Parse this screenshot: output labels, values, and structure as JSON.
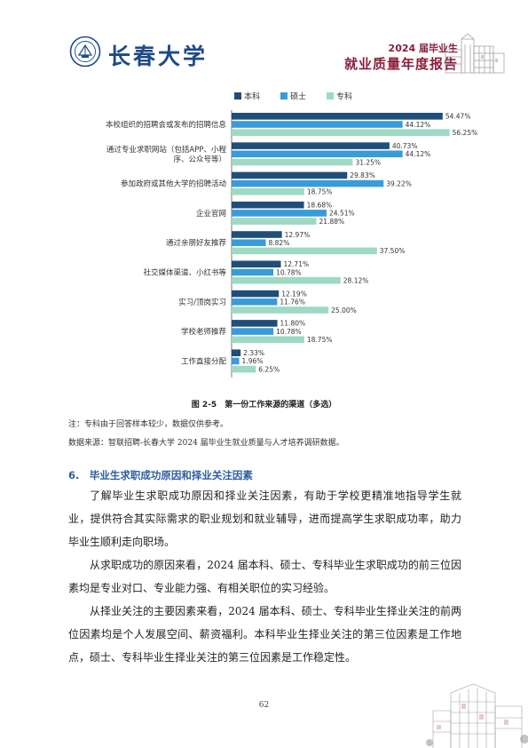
{
  "header": {
    "logo_text": "长春大学",
    "report_year": "2024 届毕业生",
    "report_title": "就业质量年度报告"
  },
  "chart_data": {
    "type": "bar",
    "orientation": "horizontal",
    "categories": [
      "本校组织的招聘会或发布的招聘信息",
      "通过专业求职网站（包括APP、小程序、公众号等）",
      "参加政府或其他大学的招聘活动",
      "企业官网",
      "通过亲朋好友推荐",
      "社交媒体渠道、小红书等",
      "实习/顶岗实习",
      "学校老师推荐",
      "工作直接分配"
    ],
    "category_lines": [
      [
        "本校组织的招聘会或发布的招聘信息"
      ],
      [
        "通过专业求职网站（包括APP、小程",
        "序、公众号等）"
      ],
      [
        "参加政府或其他大学的招聘活动"
      ],
      [
        "企业官网"
      ],
      [
        "通过亲朋好友推荐"
      ],
      [
        "社交媒体渠道、小红书等"
      ],
      [
        "实习/顶岗实习"
      ],
      [
        "学校老师推荐"
      ],
      [
        "工作直接分配"
      ]
    ],
    "series": [
      {
        "name": "本科",
        "color": "#1f4e79",
        "values": [
          54.47,
          40.73,
          29.83,
          18.68,
          12.97,
          12.71,
          12.19,
          11.8,
          2.33
        ],
        "labels": [
          "54.47%",
          "40.73%",
          "29.83%",
          "18.68%",
          "12.97%",
          "12.71%",
          "12.19%",
          "11.80%",
          "2.33%"
        ]
      },
      {
        "name": "硕士",
        "color": "#3a9bd9",
        "values": [
          44.12,
          44.12,
          39.22,
          24.51,
          8.82,
          10.78,
          11.76,
          10.78,
          1.96
        ],
        "labels": [
          "44.12%",
          "44.12%",
          "39.22%",
          "24.51%",
          "8.82%",
          "10.78%",
          "11.76%",
          "10.78%",
          "1.96%"
        ]
      },
      {
        "name": "专科",
        "color": "#9ed9c3",
        "values": [
          56.25,
          31.25,
          18.75,
          21.88,
          37.5,
          28.12,
          25.0,
          18.75,
          6.25
        ],
        "labels": [
          "56.25%",
          "31.25%",
          "18.75%",
          "21.88%",
          "37.50%",
          "28.12%",
          "25.00%",
          "18.75%",
          "6.25%"
        ]
      }
    ],
    "xlim": [
      0,
      60
    ],
    "legend_position": "top",
    "grid": false
  },
  "caption": "图 2-5　第一份工作来源的渠道（多选）",
  "note1": "注：专科由于回答样本较少，数据仅供参考。",
  "note2": "数据来源：智联招聘-长春大学 2024 届毕业生就业质量与人才培养调研数据。",
  "section_title": "6.　毕业生求职成功原因和择业关注因素",
  "paragraphs": [
    "了解毕业生求职成功原因和择业关注因素，有助于学校更精准地指导学生就业，提供符合其实际需求的职业规划和就业辅导，进而提高学生求职成功率，助力毕业生顺利走向职场。",
    "从求职成功的原因来看，2024 届本科、硕士、专科毕业生求职成功的前三位因素均是专业对口、专业能力强、有相关职位的实习经验。",
    "从择业关注的主要因素来看，2024 届本科、硕士、专科毕业生择业关注的前两位因素均是个人发展空间、薪资福利。本科毕业生择业关注的第三位因素是工作地点，硕士、专科毕业生择业关注的第三位因素是工作稳定性。"
  ],
  "page_number": "62"
}
